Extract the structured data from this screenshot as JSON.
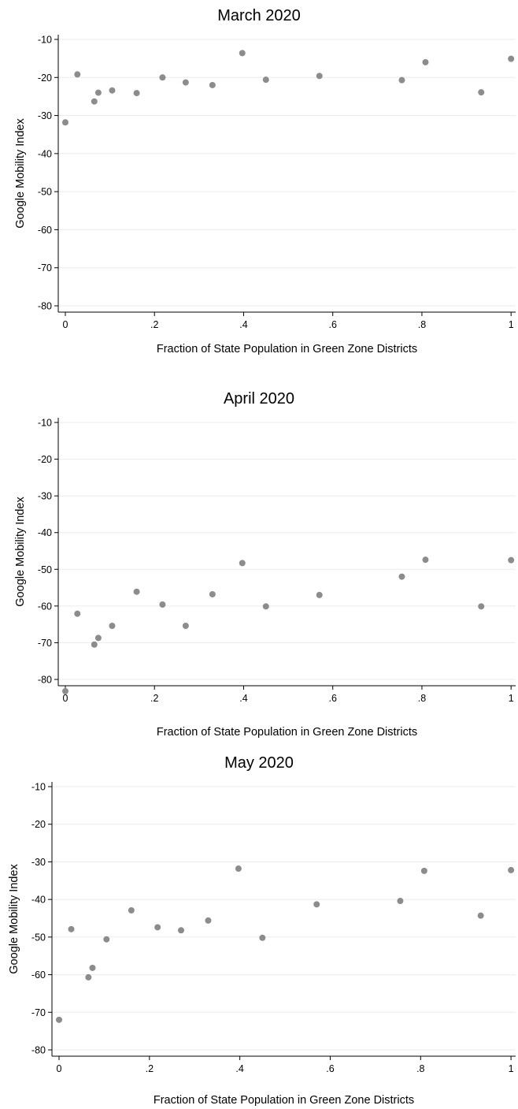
{
  "chart_data": [
    {
      "type": "scatter",
      "title": "March 2020",
      "xlabel": "Fraction of State Population in Green Zone Districts",
      "ylabel": "Google Mobility Index",
      "xlim": [
        0,
        1
      ],
      "ylim": [
        -80,
        -10
      ],
      "xticks": [
        0,
        0.2,
        0.4,
        0.6,
        0.8,
        1
      ],
      "xtick_labels": [
        "0",
        ".2",
        ".4",
        ".6",
        ".8",
        "1"
      ],
      "yticks": [
        -80,
        -70,
        -60,
        -50,
        -40,
        -30,
        -20,
        -10
      ],
      "ytick_labels": [
        "-80",
        "-70",
        "-60",
        "-50",
        "-40",
        "-30",
        "-20",
        "-10"
      ],
      "grid": true,
      "marker_color": "#8c8c8c",
      "x": [
        0,
        0.027,
        0.065,
        0.074,
        0.105,
        0.16,
        0.218,
        0.27,
        0.33,
        0.397,
        0.45,
        0.57,
        0.755,
        0.808,
        0.933,
        1.0
      ],
      "y": [
        -31.8,
        -19.2,
        -26.3,
        -24.0,
        -23.4,
        -24.1,
        -20.0,
        -21.3,
        -22.0,
        -13.6,
        -20.6,
        -19.6,
        -20.7,
        -16.0,
        -23.9,
        -15.1
      ]
    },
    {
      "type": "scatter",
      "title": "April 2020",
      "xlabel": "Fraction of State Population in Green Zone Districts",
      "ylabel": "Google Mobility Index",
      "xlim": [
        0,
        1
      ],
      "ylim": [
        -80,
        -10
      ],
      "xticks": [
        0,
        0.2,
        0.4,
        0.6,
        0.8,
        1
      ],
      "xtick_labels": [
        "0",
        ".2",
        ".4",
        ".6",
        ".8",
        "1"
      ],
      "yticks": [
        -80,
        -70,
        -60,
        -50,
        -40,
        -30,
        -20,
        -10
      ],
      "ytick_labels": [
        "-80",
        "-70",
        "-60",
        "-50",
        "-40",
        "-30",
        "-20",
        "-10"
      ],
      "grid": true,
      "marker_color": "#8c8c8c",
      "x": [
        0,
        0.027,
        0.065,
        0.074,
        0.105,
        0.16,
        0.218,
        0.27,
        0.33,
        0.397,
        0.45,
        0.57,
        0.755,
        0.808,
        0.933,
        1.0
      ],
      "y": [
        -83.2,
        -62.1,
        -70.5,
        -68.7,
        -65.4,
        -56.1,
        -59.6,
        -65.4,
        -56.8,
        -48.3,
        -60.1,
        -57.0,
        -52.0,
        -47.4,
        -60.1,
        -47.5
      ]
    },
    {
      "type": "scatter",
      "title": "May 2020",
      "xlabel": "Fraction of State Population in Green Zone Districts",
      "ylabel": "Google Mobility Index",
      "xlim": [
        0,
        1
      ],
      "ylim": [
        -80,
        -10
      ],
      "xticks": [
        0,
        0.2,
        0.4,
        0.6,
        0.8,
        1
      ],
      "xtick_labels": [
        "0",
        ".2",
        ".4",
        ".6",
        ".8",
        "1"
      ],
      "yticks": [
        -80,
        -70,
        -60,
        -50,
        -40,
        -30,
        -20,
        -10
      ],
      "ytick_labels": [
        "-80",
        "-70",
        "-60",
        "-50",
        "-40",
        "-30",
        "-20",
        "-10"
      ],
      "grid": true,
      "marker_color": "#8c8c8c",
      "x": [
        0,
        0.027,
        0.065,
        0.074,
        0.105,
        0.16,
        0.218,
        0.27,
        0.33,
        0.397,
        0.45,
        0.57,
        0.755,
        0.808,
        0.933,
        1.0
      ],
      "y": [
        -72.0,
        -47.9,
        -60.7,
        -58.2,
        -50.6,
        -42.9,
        -47.4,
        -48.2,
        -45.6,
        -31.8,
        -50.2,
        -41.3,
        -40.4,
        -32.4,
        -44.3,
        -32.2
      ]
    }
  ]
}
